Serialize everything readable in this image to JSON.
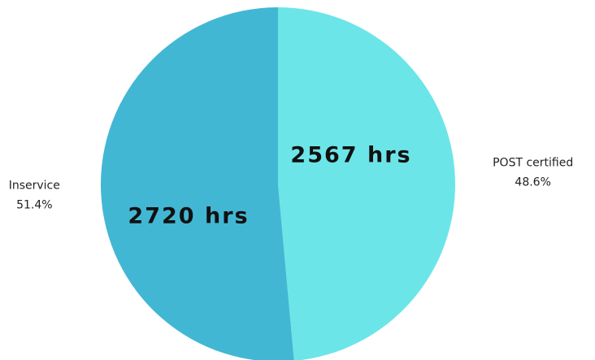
{
  "chart_data": {
    "type": "pie",
    "categories": [
      "POST certified",
      "Inservice"
    ],
    "values": [
      2567,
      2720
    ],
    "value_labels": [
      "2567 hrs",
      "2720 hrs"
    ],
    "percents": [
      48.6,
      51.4
    ],
    "percent_labels": [
      "48.6%",
      "51.4%"
    ],
    "colors": [
      "#6ce5e8",
      "#42b7d4"
    ]
  }
}
